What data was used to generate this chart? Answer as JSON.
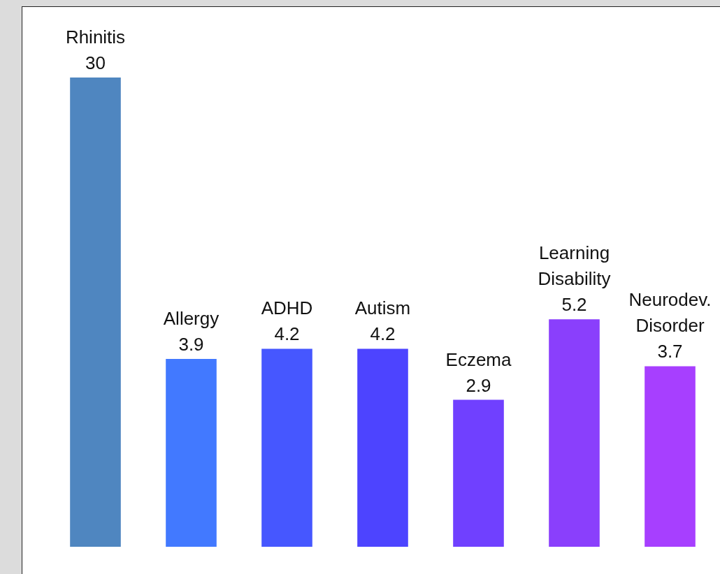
{
  "chart_data": {
    "type": "bar",
    "categories": [
      "Rhinitis",
      "Allergy",
      "ADHD",
      "Autism",
      "Eczema",
      "Learning Disability",
      "Neurodev. Disorder"
    ],
    "values": [
      30,
      3.9,
      4.2,
      4.2,
      2.9,
      5.2,
      3.7
    ],
    "colors": [
      "#4f86c0",
      "#4279ff",
      "#4657ff",
      "#4d44ff",
      "#7040ff",
      "#8a3ffc",
      "#a73fff"
    ],
    "log": true,
    "ylim": [
      1,
      50
    ],
    "data_labels": true
  }
}
